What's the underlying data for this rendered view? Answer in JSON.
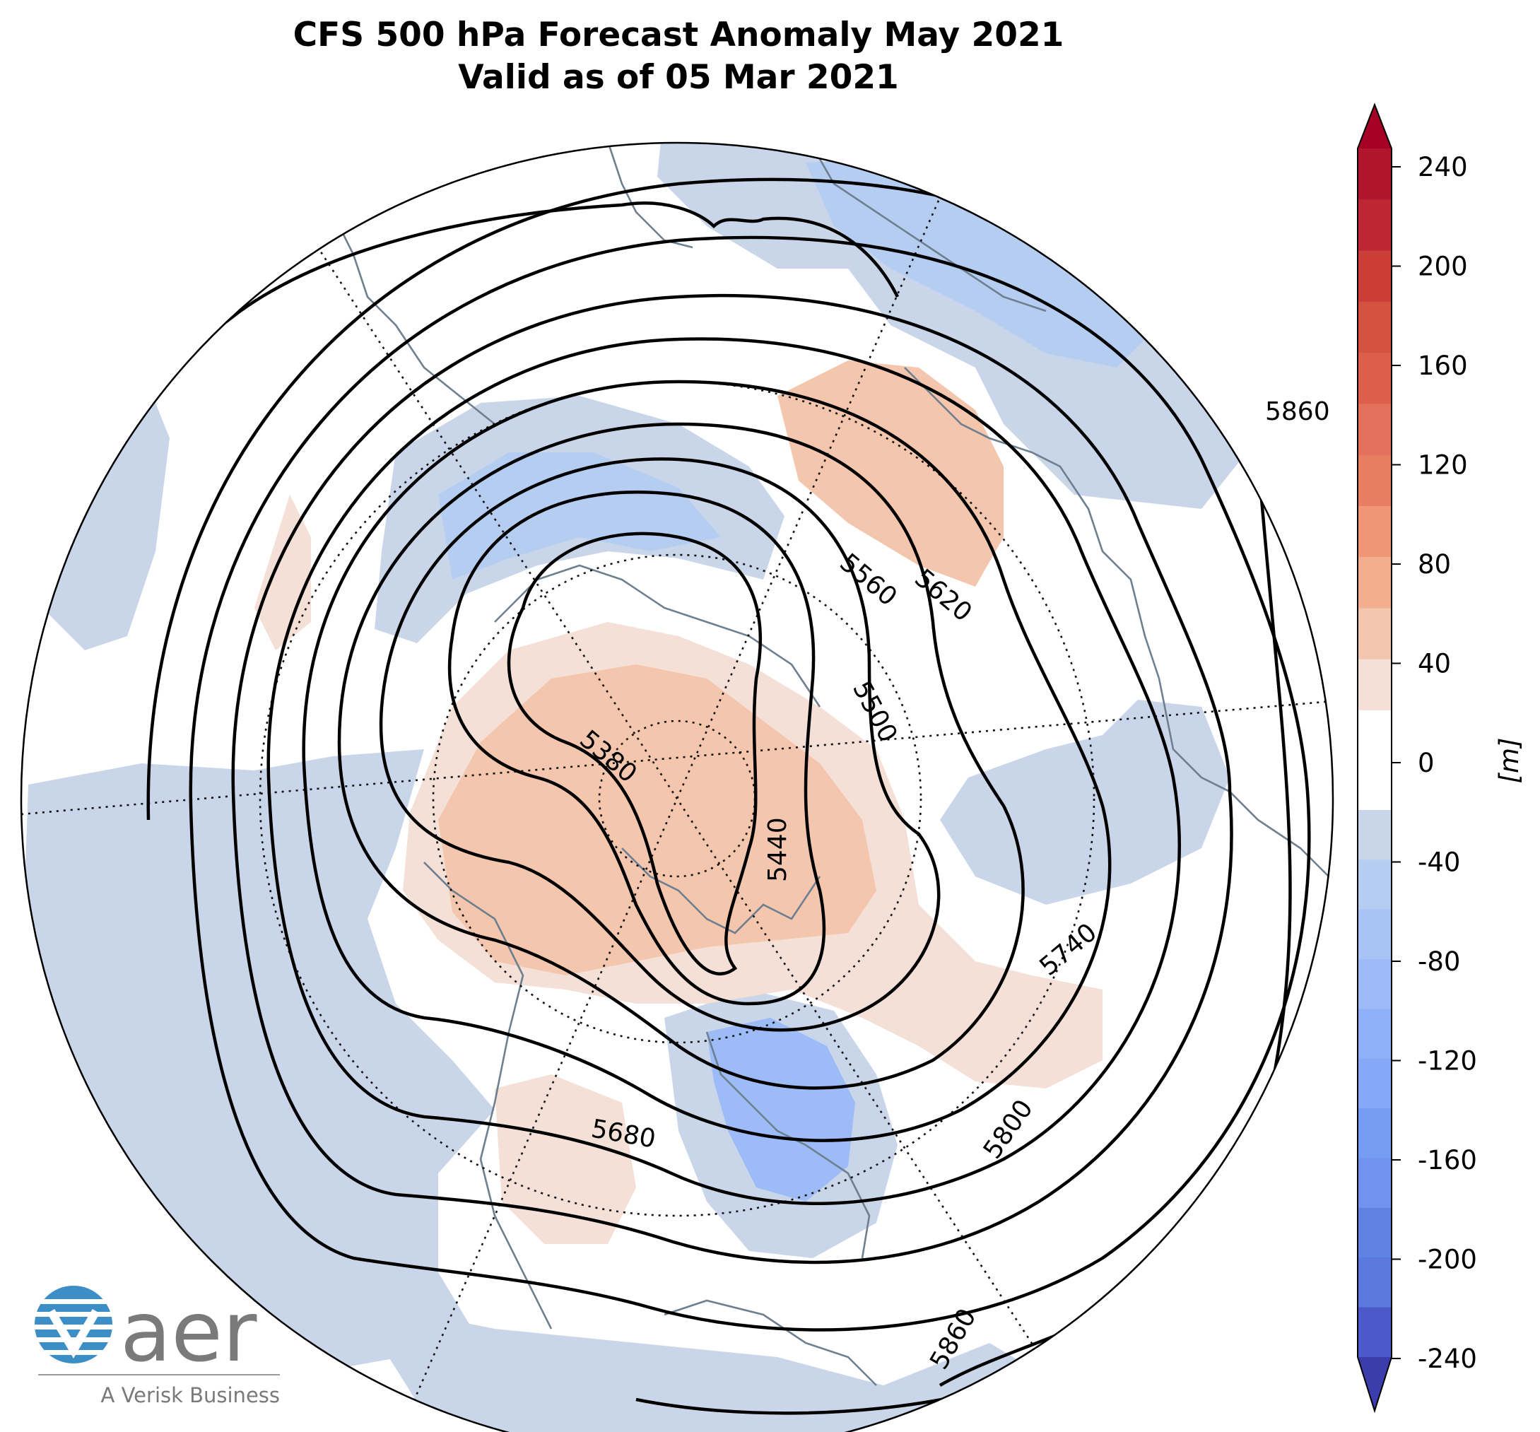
{
  "title": {
    "line1": "CFS 500 hPa Forecast Anomaly May 2021",
    "line2": "Valid as of 05 Mar 2021"
  },
  "contour_labels": [
    "5380",
    "5440",
    "5500",
    "5560",
    "5620",
    "5680",
    "5740",
    "5800",
    "5860",
    "5860"
  ],
  "colorbar": {
    "unit_label": "[m]",
    "ticks": [
      "240",
      "200",
      "160",
      "120",
      "80",
      "40",
      "0",
      "-40",
      "-80",
      "-120",
      "-160",
      "-200",
      "-240"
    ],
    "colors_positive": [
      "#f4e0d6",
      "#f3c6ad",
      "#f2ae8e",
      "#ef9677",
      "#e97d61",
      "#dd5f4b",
      "#cb3e38",
      "#b0152d"
    ],
    "colors_negative": [
      "#c9d6ea",
      "#b6cdf2",
      "#9dbbf7",
      "#86a9f7",
      "#6f93ee",
      "#5a78dd",
      "#4a5ac9",
      "#3b3dad"
    ]
  },
  "logo": {
    "name": "aer",
    "tagline": "A Verisk Business"
  }
}
